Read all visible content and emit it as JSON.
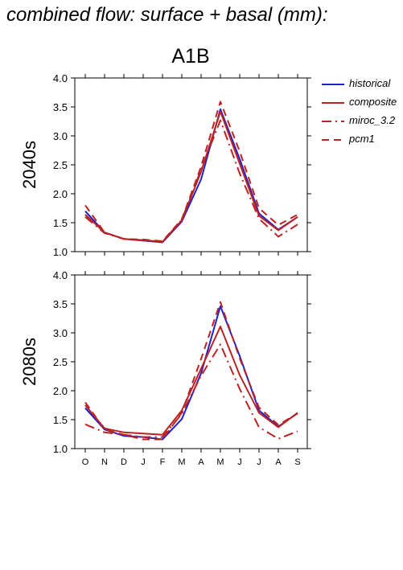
{
  "page": {
    "title": "combined flow: surface + basal (mm):",
    "scenario": "A1B"
  },
  "legend": [
    {
      "label": "historical",
      "color": "#2222cc",
      "dash": "solid"
    },
    {
      "label": "composite",
      "color": "#bb2222",
      "dash": "solid"
    },
    {
      "label": "miroc_3.2",
      "color": "#bb2222",
      "dash": "dashdot"
    },
    {
      "label": "pcm1",
      "color": "#bb2222",
      "dash": "dashed"
    }
  ],
  "chart_data": [
    {
      "type": "line",
      "ylabel": "2040s",
      "categories": [
        "O",
        "N",
        "D",
        "J",
        "F",
        "M",
        "A",
        "M",
        "J",
        "J",
        "A",
        "S"
      ],
      "ylim": [
        1.0,
        4.0
      ],
      "yticks": [
        "1.0",
        "1.5",
        "2.0",
        "2.5",
        "3.0",
        "3.5",
        "4.0"
      ],
      "series": [
        {
          "name": "historical",
          "values": [
            1.7,
            1.33,
            1.22,
            1.19,
            1.16,
            1.52,
            2.25,
            3.46,
            2.6,
            1.66,
            1.38,
            1.6
          ]
        },
        {
          "name": "composite",
          "values": [
            1.64,
            1.33,
            1.22,
            1.2,
            1.17,
            1.54,
            2.38,
            3.42,
            2.52,
            1.62,
            1.37,
            1.6
          ]
        },
        {
          "name": "miroc_3.2",
          "values": [
            1.6,
            1.32,
            1.22,
            1.19,
            1.17,
            1.55,
            2.42,
            3.27,
            2.35,
            1.57,
            1.26,
            1.47
          ]
        },
        {
          "name": "pcm1",
          "values": [
            1.8,
            1.33,
            1.22,
            1.21,
            1.18,
            1.56,
            2.47,
            3.59,
            2.73,
            1.75,
            1.46,
            1.64
          ]
        }
      ]
    },
    {
      "type": "line",
      "ylabel": "2080s",
      "categories": [
        "O",
        "N",
        "D",
        "J",
        "F",
        "M",
        "A",
        "M",
        "J",
        "J",
        "A",
        "S"
      ],
      "ylim": [
        1.0,
        4.0
      ],
      "yticks": [
        "1.0",
        "1.5",
        "2.0",
        "2.5",
        "3.0",
        "3.5",
        "4.0"
      ],
      "series": [
        {
          "name": "historical",
          "values": [
            1.7,
            1.33,
            1.22,
            1.2,
            1.16,
            1.51,
            2.3,
            3.46,
            2.6,
            1.66,
            1.38,
            1.61
          ]
        },
        {
          "name": "composite",
          "values": [
            1.75,
            1.35,
            1.28,
            1.26,
            1.24,
            1.66,
            2.38,
            3.11,
            2.27,
            1.62,
            1.37,
            1.62
          ]
        },
        {
          "name": "miroc_3.2",
          "values": [
            1.42,
            1.28,
            1.24,
            1.2,
            1.2,
            1.6,
            2.26,
            2.8,
            2.03,
            1.37,
            1.17,
            1.3
          ]
        },
        {
          "name": "pcm1",
          "values": [
            1.8,
            1.33,
            1.24,
            1.16,
            1.16,
            1.62,
            2.55,
            3.53,
            2.56,
            1.71,
            1.41,
            1.61
          ]
        }
      ]
    }
  ]
}
